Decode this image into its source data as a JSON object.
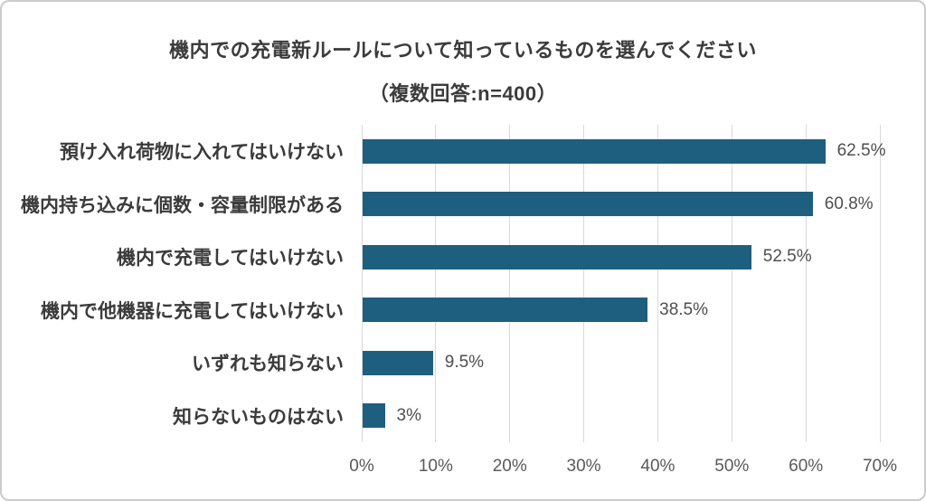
{
  "title": {
    "line1": "機内での充電新ルールについて知っているものを選んでください",
    "line2": "（複数回答:n=400）"
  },
  "colors": {
    "bar": "#1e5f80",
    "gridline": "#d9d9d9",
    "title_text": "#3b3b3b",
    "category_text": "#3b3b3b",
    "value_text": "#4f4f4f",
    "tick_text": "#595959",
    "frame_border": "#cbcbcb",
    "background": "#ffffff"
  },
  "chart_data": {
    "type": "bar",
    "orientation": "horizontal",
    "title": "機内での充電新ルールについて知っているものを選んでください（複数回答:n=400）",
    "categories": [
      "預け入れ荷物に入れてはいけない",
      "機内持ち込みに個数・容量制限がある",
      "機内で充電してはいけない",
      "機内で他機器に充電してはいけない",
      "いずれも知らない",
      "知らないものはない"
    ],
    "values": [
      62.5,
      60.8,
      52.5,
      38.5,
      9.5,
      3
    ],
    "value_labels": [
      "62.5%",
      "60.8%",
      "52.5%",
      "38.5%",
      "9.5%",
      "3%"
    ],
    "xlabel": "",
    "ylabel": "",
    "xlim": [
      0,
      70
    ],
    "x_ticks": [
      "0%",
      "10%",
      "20%",
      "30%",
      "40%",
      "50%",
      "60%",
      "70%"
    ],
    "grid": "vertical-only",
    "legend": false
  }
}
